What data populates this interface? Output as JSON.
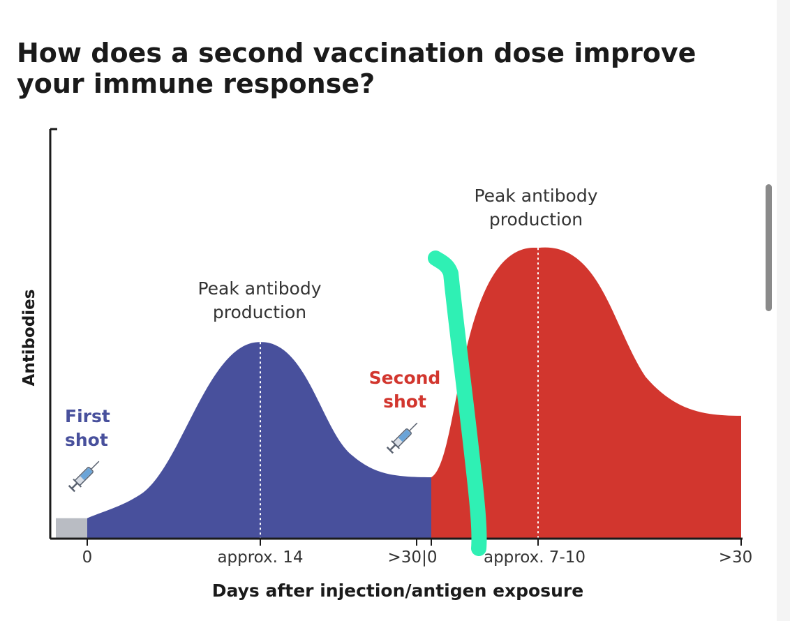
{
  "title": "How does a second vaccination dose improve your immune response?",
  "colors": {
    "first_dose": "#48509c",
    "second_dose": "#d2362e",
    "baseline": "#b9bcc3",
    "marker_stroke": "#2ff0b4",
    "axis": "#1a1a1a"
  },
  "chart_data": {
    "type": "area",
    "title": "How does a second vaccination dose improve your immune response?",
    "xlabel": "Days after injection/antigen exposure",
    "ylabel": "Antibodies",
    "tick_labels": [
      "0",
      "approx. 14",
      ">30|0",
      "approx. 7-10",
      ">30"
    ],
    "grid": false,
    "y_ticks_shown": false,
    "series": [
      {
        "name": "First shot",
        "color": "#48509c",
        "points": [
          {
            "x": "0",
            "y": 0.05
          },
          {
            "x": "approx. 14",
            "y": 0.48
          },
          {
            "x": ">30",
            "y": 0.15
          }
        ]
      },
      {
        "name": "Second shot",
        "color": "#d2362e",
        "points": [
          {
            "x": "0",
            "y": 0.15
          },
          {
            "x": "approx. 7-10",
            "y": 0.71
          },
          {
            "x": ">30",
            "y": 0.3
          }
        ]
      }
    ],
    "annotations": [
      {
        "text": "Peak antibody production",
        "at": "approx. 14",
        "series": "First shot"
      },
      {
        "text": "Peak antibody production",
        "at": "approx. 7-10",
        "series": "Second shot"
      }
    ]
  },
  "labels": {
    "peak_first": [
      "Peak antibody",
      "production"
    ],
    "peak_second": [
      "Peak antibody",
      "production"
    ],
    "first_shot": [
      "First",
      "shot"
    ],
    "second_shot": [
      "Second",
      "shot"
    ]
  },
  "icons": {
    "first_shot": "syringe-icon",
    "second_shot": "syringe-icon"
  }
}
